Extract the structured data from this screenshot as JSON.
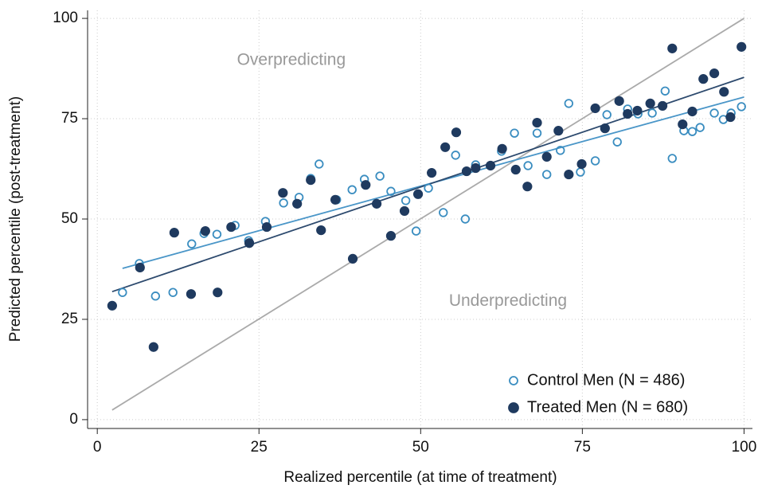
{
  "chart_data": {
    "type": "scatter",
    "xlabel": "Realized percentile (at time of treatment)",
    "ylabel": "Predicted percentile (post-treatment)",
    "xlim": [
      -1.5,
      101.3
    ],
    "ylim": [
      -2.2,
      102
    ],
    "xticks": [
      0,
      25,
      50,
      75,
      100
    ],
    "yticks": [
      0,
      25,
      50,
      75,
      100
    ],
    "grid": true,
    "legend": "lower right",
    "series": [
      {
        "name": "Control Men (N = 486)",
        "color": "#3a8dc0",
        "marker": "hollow",
        "x": [
          3.9,
          6.5,
          9.0,
          11.7,
          14.6,
          16.5,
          18.5,
          21.3,
          23.4,
          26.0,
          28.8,
          31.2,
          33.0,
          34.3,
          37.0,
          39.4,
          41.3,
          43.7,
          45.4,
          47.7,
          49.3,
          51.2,
          53.5,
          55.4,
          56.9,
          58.5,
          62.5,
          64.5,
          66.6,
          68.0,
          69.5,
          71.6,
          72.9,
          74.7,
          77.0,
          78.8,
          80.4,
          82.0,
          83.6,
          85.8,
          87.8,
          88.9,
          90.7,
          92.0,
          93.2,
          95.4,
          96.8,
          98.0,
          99.6
        ],
        "values": [
          31.7,
          38.9,
          30.8,
          31.7,
          43.8,
          46.4,
          46.2,
          48.4,
          44.6,
          49.4,
          54.0,
          55.4,
          60.1,
          63.7,
          54.8,
          57.3,
          59.9,
          60.7,
          56.9,
          54.6,
          47.0,
          57.7,
          51.6,
          65.9,
          50.0,
          63.5,
          66.9,
          71.4,
          63.3,
          71.4,
          61.1,
          67.1,
          78.8,
          61.7,
          64.5,
          76.0,
          69.2,
          77.4,
          76.2,
          76.4,
          81.9,
          65.1,
          72.0,
          71.8,
          72.8,
          76.4,
          74.8,
          76.4,
          78.0
        ],
        "fit": {
          "x": [
            3.9,
            100
          ],
          "y": [
            37.7,
            80.4
          ],
          "color": "#4a96c8"
        }
      },
      {
        "name": "Treated Men (N = 680)",
        "color": "#1f3a5f",
        "marker": "filled",
        "x": [
          2.3,
          6.6,
          8.7,
          11.9,
          14.5,
          16.7,
          18.6,
          20.7,
          23.5,
          26.2,
          28.7,
          30.9,
          33.0,
          34.6,
          36.8,
          39.5,
          41.5,
          43.2,
          45.4,
          47.5,
          49.6,
          51.7,
          53.8,
          55.5,
          57.1,
          58.5,
          60.8,
          62.6,
          64.7,
          66.5,
          68.0,
          69.5,
          71.3,
          72.9,
          74.9,
          77.0,
          78.5,
          80.7,
          82.0,
          83.5,
          85.5,
          87.4,
          88.9,
          90.5,
          92.0,
          93.7,
          95.4,
          96.9,
          97.9,
          99.6
        ],
        "values": [
          28.4,
          37.9,
          18.1,
          46.6,
          31.3,
          47.0,
          31.7,
          48.0,
          44.0,
          48.0,
          56.5,
          53.8,
          59.7,
          47.2,
          54.8,
          40.1,
          58.5,
          53.8,
          45.8,
          52.0,
          56.2,
          61.5,
          67.9,
          71.6,
          61.9,
          62.7,
          63.3,
          67.5,
          62.3,
          58.1,
          74.0,
          65.5,
          72.0,
          61.1,
          63.7,
          77.6,
          72.6,
          79.4,
          76.2,
          77.0,
          78.8,
          78.2,
          92.5,
          73.6,
          76.8,
          84.9,
          86.3,
          81.7,
          75.4,
          92.9
        ],
        "fit": {
          "x": [
            2.3,
            100
          ],
          "y": [
            31.9,
            85.3
          ],
          "color": "#2d4a6e"
        }
      }
    ],
    "reference_line": {
      "x": [
        2.3,
        100
      ],
      "y": [
        2.4,
        100
      ],
      "color": "#aaaaaa"
    },
    "annotations": [
      {
        "text": "Overpredicting",
        "x": 30,
        "y": 89.5
      },
      {
        "text": "Underpredicting",
        "x": 63.5,
        "y": 29.5
      }
    ]
  }
}
